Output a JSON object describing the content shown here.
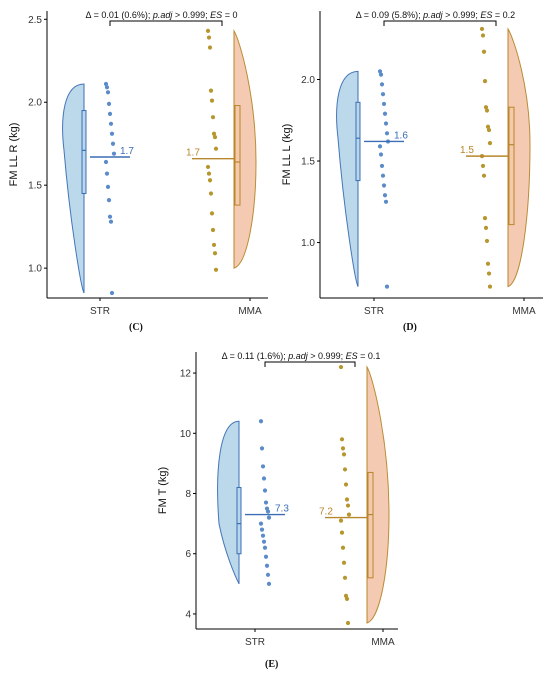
{
  "chart_data": [
    {
      "panel": "(C)",
      "type": "raincloud",
      "ylabel": "FM LL R (kg)",
      "ylim": [
        0.82,
        2.55
      ],
      "yticks": [
        1.0,
        1.5,
        2.0,
        2.5
      ],
      "categories": [
        "STR",
        "MMA"
      ],
      "annotation": {
        "delta": "Δ = 0.01 (0.6%)",
        "padj_label": "p.adj",
        "padj_value": " > 0.999",
        "es_label": "ES",
        "es_value": " = 0"
      },
      "groups": [
        {
          "name": "STR",
          "mean": 1.67,
          "mean_label": "1.7",
          "q1": 1.45,
          "median": 1.71,
          "q3": 1.95,
          "min": 0.85,
          "max": 2.11,
          "points": [
            2.11,
            2.09,
            2.06,
            1.99,
            1.93,
            1.87,
            1.81,
            1.75,
            1.69,
            1.64,
            1.57,
            1.49,
            1.41,
            1.31,
            1.28,
            0.85
          ]
        },
        {
          "name": "MMA",
          "mean": 1.66,
          "mean_label": "1.7",
          "q1": 1.38,
          "median": 1.64,
          "q3": 1.98,
          "min": 1.0,
          "max": 2.43,
          "points": [
            2.43,
            2.39,
            2.33,
            2.07,
            2.01,
            1.91,
            1.81,
            1.79,
            1.72,
            1.61,
            1.57,
            1.53,
            1.45,
            1.33,
            1.23,
            1.14,
            1.09,
            0.99
          ]
        }
      ]
    },
    {
      "panel": "(D)",
      "type": "raincloud",
      "ylabel": "FM LL L (kg)",
      "ylim": [
        0.66,
        2.42
      ],
      "yticks": [
        1.0,
        1.5,
        2.0
      ],
      "categories": [
        "STR",
        "MMA"
      ],
      "annotation": {
        "delta": "Δ = 0.09 (5.8%)",
        "padj_label": "p.adj",
        "padj_value": " > 0.999",
        "es_label": "ES",
        "es_value": " = 0.2"
      },
      "groups": [
        {
          "name": "STR",
          "mean": 1.62,
          "mean_label": "1.6",
          "q1": 1.38,
          "median": 1.64,
          "q3": 1.86,
          "min": 0.73,
          "max": 2.05,
          "points": [
            2.05,
            2.03,
            1.97,
            1.91,
            1.85,
            1.79,
            1.73,
            1.67,
            1.62,
            1.59,
            1.54,
            1.47,
            1.41,
            1.35,
            1.29,
            1.25,
            0.73
          ]
        },
        {
          "name": "MMA",
          "mean": 1.53,
          "mean_label": "1.5",
          "q1": 1.11,
          "median": 1.6,
          "q3": 1.83,
          "min": 0.73,
          "max": 2.31,
          "points": [
            2.31,
            2.27,
            2.17,
            1.99,
            1.83,
            1.81,
            1.71,
            1.69,
            1.61,
            1.53,
            1.47,
            1.41,
            1.15,
            1.09,
            1.01,
            0.87,
            0.81,
            0.73
          ]
        }
      ]
    },
    {
      "panel": "(E)",
      "type": "raincloud",
      "ylabel": "FM T (kg)",
      "ylim": [
        3.5,
        12.7
      ],
      "yticks": [
        4,
        6,
        8,
        10,
        12
      ],
      "categories": [
        "STR",
        "MMA"
      ],
      "annotation": {
        "delta": "Δ = 0.11 (1.6%)",
        "padj_label": "p.adj",
        "padj_value": " > 0.999",
        "es_label": "ES",
        "es_value": " = 0.1"
      },
      "groups": [
        {
          "name": "STR",
          "mean": 7.3,
          "mean_label": "7.3",
          "q1": 6.0,
          "median": 7.0,
          "q3": 8.2,
          "min": 5.0,
          "max": 10.4,
          "points": [
            10.4,
            9.5,
            8.9,
            8.5,
            8.1,
            7.7,
            7.5,
            7.4,
            7.2,
            7.0,
            6.8,
            6.6,
            6.4,
            6.2,
            5.9,
            5.6,
            5.3,
            5.0
          ]
        },
        {
          "name": "MMA",
          "mean": 7.2,
          "mean_label": "7.2",
          "q1": 5.2,
          "median": 7.3,
          "q3": 8.7,
          "min": 3.7,
          "max": 12.2,
          "points": [
            12.2,
            9.8,
            9.5,
            9.3,
            8.8,
            8.3,
            7.8,
            7.6,
            7.3,
            7.1,
            6.7,
            6.2,
            5.7,
            5.2,
            4.6,
            4.5,
            3.7
          ]
        }
      ]
    }
  ],
  "panel_labels": {
    "c": "(C)",
    "d": "(D)",
    "e": "(E)"
  },
  "colors": {
    "str_line": "#3a6fb5",
    "str_fill": "#b9d6ea",
    "str_point": "#5b8cc9",
    "mma_line": "#b8862b",
    "mma_fill": "#f4c9ae",
    "mma_point": "#b8962e",
    "axis": "#000000"
  }
}
